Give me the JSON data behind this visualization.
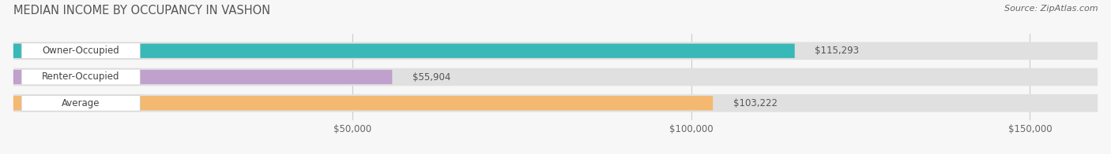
{
  "title": "MEDIAN INCOME BY OCCUPANCY IN VASHON",
  "source": "Source: ZipAtlas.com",
  "categories": [
    "Owner-Occupied",
    "Renter-Occupied",
    "Average"
  ],
  "values": [
    115293,
    55904,
    103222
  ],
  "labels": [
    "$115,293",
    "$55,904",
    "$103,222"
  ],
  "bar_colors": [
    "#39b8b8",
    "#c0a0cc",
    "#f5b870"
  ],
  "bar_bg_color": "#e0e0e0",
  "background_color": "#f7f7f7",
  "title_fontsize": 10.5,
  "label_fontsize": 8.5,
  "value_fontsize": 8.5,
  "source_fontsize": 8,
  "xmax": 160000,
  "xticks": [
    50000,
    100000,
    150000
  ],
  "xticklabels": [
    "$50,000",
    "$100,000",
    "$150,000"
  ]
}
